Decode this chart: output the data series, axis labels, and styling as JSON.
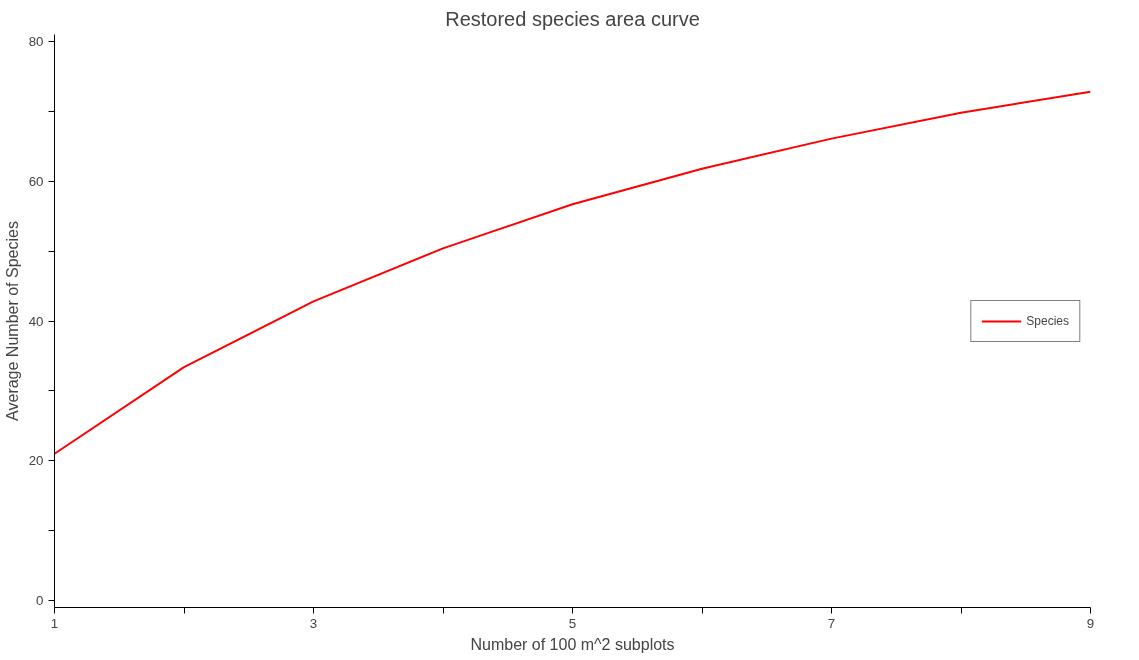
{
  "chart_data": {
    "type": "line",
    "title": "Restored species area curve",
    "xlabel": "Number of 100 m^2 subplots",
    "ylabel": "Average Number of Species",
    "x": [
      1,
      2,
      3,
      4,
      5,
      6,
      7,
      8,
      9
    ],
    "series": [
      {
        "name": "Species",
        "color": "#ff0000",
        "values": [
          21.0,
          33.4,
          42.8,
          50.4,
          56.7,
          61.8,
          66.1,
          69.8,
          72.8
        ]
      }
    ],
    "xlim": [
      1,
      9
    ],
    "xticks": [
      1,
      {
        "value": 2,
        "label": null
      },
      3,
      {
        "value": 4,
        "label": null
      },
      5,
      {
        "value": 6,
        "label": null
      },
      7,
      {
        "value": 8,
        "label": null
      },
      9
    ],
    "ylim": [
      -1,
      81
    ],
    "yticks": [
      0,
      {
        "value": 10,
        "label": null
      },
      20,
      {
        "value": 30,
        "label": null
      },
      40,
      {
        "value": 50,
        "label": null
      },
      60,
      {
        "value": 70,
        "label": null
      },
      80
    ],
    "grid": false,
    "legend": "right",
    "marker": "none",
    "line_style": "solid"
  }
}
